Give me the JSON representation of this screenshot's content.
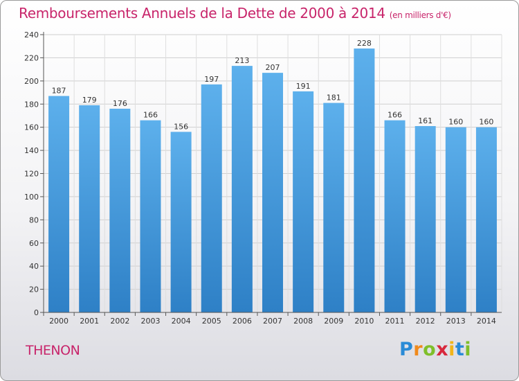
{
  "chart_data": {
    "type": "bar",
    "title": "Remboursements Annuels de la Dette de 2000 à 2014",
    "subtitle": "(en milliers d'€)",
    "xlabel": "",
    "ylabel": "",
    "categories": [
      "2000",
      "2001",
      "2002",
      "2003",
      "2004",
      "2005",
      "2006",
      "2007",
      "2008",
      "2009",
      "2010",
      "2011",
      "2012",
      "2013",
      "2014"
    ],
    "values": [
      187,
      179,
      176,
      166,
      156,
      197,
      213,
      207,
      191,
      181,
      228,
      166,
      161,
      160,
      160
    ],
    "ylim": [
      0,
      240
    ],
    "yticks": [
      0,
      20,
      40,
      60,
      80,
      100,
      120,
      140,
      160,
      180,
      200,
      220,
      240
    ],
    "grid": true,
    "data_labels": true,
    "bar_color": "#4a9fe0",
    "legend": "none"
  },
  "footer": {
    "commune": "THENON",
    "brand_logo": "Proxiti"
  },
  "colors": {
    "title": "#c8246a",
    "bar": "#4a9fe0",
    "grid": "#cfcfcf"
  }
}
